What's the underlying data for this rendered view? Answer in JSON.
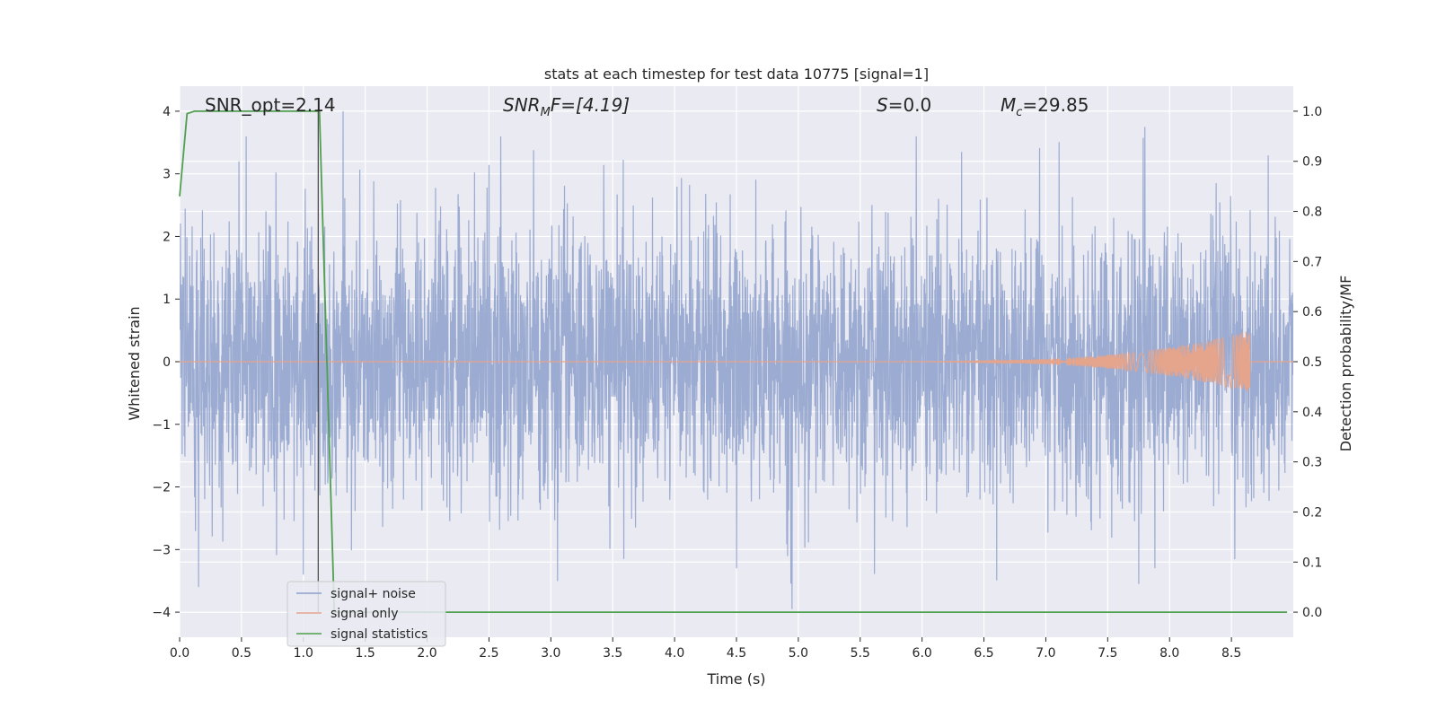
{
  "chart_data": {
    "type": "line",
    "title": "stats at each timestep for test data 10775 [signal=1]",
    "xlabel": "Time (s)",
    "ylabel": "Whitened strain",
    "y2label": "Detection probability/MF",
    "xlim": [
      0.0,
      9.0
    ],
    "ylim": [
      -4.4,
      4.4
    ],
    "y2lim": [
      -0.05,
      1.05
    ],
    "xticks": [
      0.0,
      0.5,
      1.0,
      1.5,
      2.0,
      2.5,
      3.0,
      3.5,
      4.0,
      4.5,
      5.0,
      5.5,
      6.0,
      6.5,
      7.0,
      7.5,
      8.0,
      8.5
    ],
    "xtick_labels": [
      "0.0",
      "0.5",
      "1.0",
      "1.5",
      "2.0",
      "2.5",
      "3.0",
      "3.5",
      "4.0",
      "4.5",
      "5.0",
      "5.5",
      "6.0",
      "6.5",
      "7.0",
      "7.5",
      "8.0",
      "8.5"
    ],
    "yticks": [
      -4,
      -3,
      -2,
      -1,
      0,
      1,
      2,
      3,
      4
    ],
    "ytick_labels": [
      "−4",
      "−3",
      "−2",
      "−1",
      "0",
      "1",
      "2",
      "3",
      "4"
    ],
    "y2ticks": [
      0.0,
      0.1,
      0.2,
      0.3,
      0.4,
      0.5,
      0.6,
      0.7,
      0.8,
      0.9,
      1.0
    ],
    "y2tick_labels": [
      "0.0",
      "0.1",
      "0.2",
      "0.3",
      "0.4",
      "0.5",
      "0.6",
      "0.7",
      "0.8",
      "0.9",
      "1.0"
    ],
    "grid": true,
    "legend_position": "lower-left",
    "annotations": {
      "snr_opt": "SNR_opt=2.14",
      "snr_mf_label": "SNR",
      "snr_mf_sub": "M",
      "snr_mf_tail": "F=[4.19]",
      "s_label": "S",
      "s_value": "=0.0",
      "mc_label": "M",
      "mc_sub": "c",
      "mc_value": "=29.85"
    },
    "vline_x": 1.12,
    "series": [
      {
        "name": "signal+ noise",
        "color": "#8da0cb",
        "description_level": "white noise, std ~1, range ~[-4, 4]",
        "notable_peaks": [
          {
            "x": 1.32,
            "y": 4.0
          },
          {
            "x": 0.48,
            "y": 3.2
          },
          {
            "x": 6.32,
            "y": 3.35
          },
          {
            "x": 7.8,
            "y": 3.75
          },
          {
            "x": 4.95,
            "y": -3.95
          },
          {
            "x": 7.75,
            "y": -3.55
          },
          {
            "x": 4.5,
            "y": -3.3
          },
          {
            "x": 1.0,
            "y": -3.4
          }
        ]
      },
      {
        "name": "signal only",
        "color": "#e5a48c",
        "chirp_start": 5.0,
        "chirp_end": 8.65,
        "peak_amplitude": 0.5
      },
      {
        "name": "signal statistics",
        "color": "#4f9f4f",
        "points": [
          {
            "x": 0.0,
            "y": 0.83
          },
          {
            "x": 0.06,
            "y": 0.995
          },
          {
            "x": 0.12,
            "y": 1.0
          },
          {
            "x": 1.13,
            "y": 1.0
          },
          {
            "x": 1.25,
            "y": 0.0
          },
          {
            "x": 8.95,
            "y": 0.0
          }
        ]
      }
    ]
  }
}
